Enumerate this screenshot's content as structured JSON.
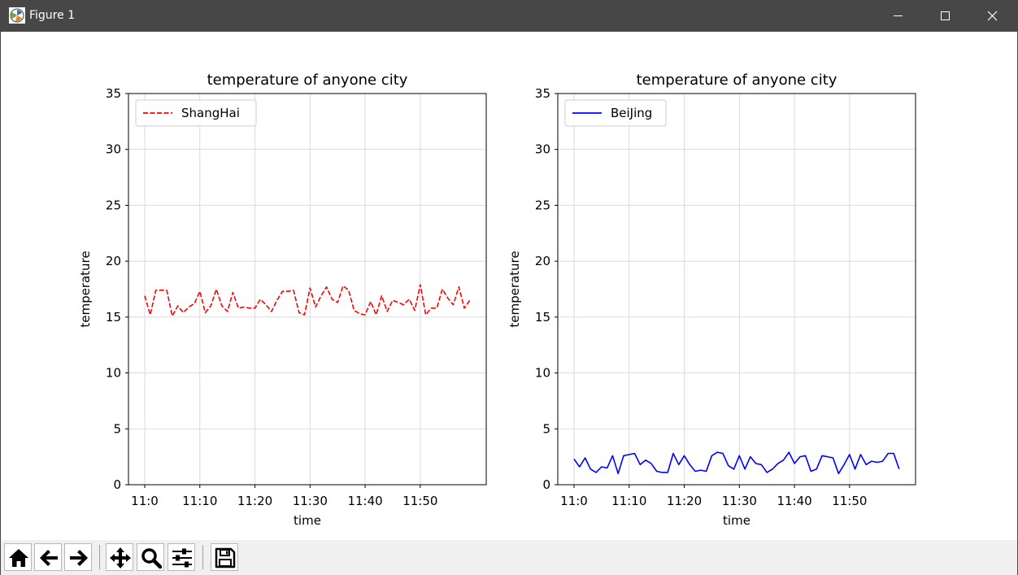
{
  "window": {
    "title": "Figure 1",
    "controls": [
      "minimize-icon",
      "maximize-icon",
      "close-icon"
    ]
  },
  "toolbar": {
    "buttons": [
      "home-icon",
      "back-icon",
      "forward-icon",
      "pan-icon",
      "zoom-icon",
      "configure-subplots-icon",
      "save-icon"
    ]
  },
  "chart_data": [
    {
      "type": "line",
      "title": "temperature of anyone city",
      "xlabel": "time",
      "ylabel": "temperature",
      "x": [
        0,
        1,
        2,
        3,
        4,
        5,
        6,
        7,
        8,
        9,
        10,
        11,
        12,
        13,
        14,
        15,
        16,
        17,
        18,
        19,
        20,
        21,
        22,
        23,
        24,
        25,
        26,
        27,
        28,
        29,
        30,
        31,
        32,
        33,
        34,
        35,
        36,
        37,
        38,
        39,
        40,
        41,
        42,
        43,
        44,
        45,
        46,
        47,
        48,
        49,
        50,
        51,
        52,
        53,
        54,
        55,
        56,
        57,
        58,
        59
      ],
      "xticks": [
        0,
        10,
        20,
        30,
        40,
        50
      ],
      "xticklabels": [
        "11:0",
        "11:10",
        "11:20",
        "11:30",
        "11:40",
        "11:50"
      ],
      "ylim": [
        0,
        35
      ],
      "yticks": [
        0,
        5,
        10,
        15,
        20,
        25,
        30,
        35
      ],
      "grid": true,
      "legend_position": "upper left",
      "series": [
        {
          "name": "ShangHai",
          "color": "#ff0000",
          "linestyle": "dashed",
          "values": [
            16.9,
            15.2,
            17.4,
            17.4,
            17.4,
            15.1,
            16.0,
            15.4,
            15.9,
            16.2,
            17.3,
            15.4,
            16.0,
            17.5,
            16.0,
            15.5,
            17.2,
            15.8,
            15.9,
            15.8,
            15.8,
            16.6,
            16.1,
            15.5,
            16.5,
            17.3,
            17.3,
            17.4,
            15.4,
            15.2,
            17.6,
            15.9,
            16.9,
            17.7,
            16.6,
            16.3,
            17.8,
            17.4,
            15.6,
            15.3,
            15.2,
            16.4,
            15.2,
            16.9,
            15.5,
            16.5,
            16.3,
            16.1,
            16.6,
            15.6,
            17.9,
            15.2,
            15.8,
            15.8,
            17.5,
            16.7,
            16.1,
            17.7,
            15.8,
            16.5
          ]
        }
      ]
    },
    {
      "type": "line",
      "title": "temperature of anyone city",
      "xlabel": "time",
      "ylabel": "temperature",
      "x": [
        0,
        1,
        2,
        3,
        4,
        5,
        6,
        7,
        8,
        9,
        10,
        11,
        12,
        13,
        14,
        15,
        16,
        17,
        18,
        19,
        20,
        21,
        22,
        23,
        24,
        25,
        26,
        27,
        28,
        29,
        30,
        31,
        32,
        33,
        34,
        35,
        36,
        37,
        38,
        39,
        40,
        41,
        42,
        43,
        44,
        45,
        46,
        47,
        48,
        49,
        50,
        51,
        52,
        53,
        54,
        55,
        56,
        57,
        58,
        59
      ],
      "xticks": [
        0,
        10,
        20,
        30,
        40,
        50
      ],
      "xticklabels": [
        "11:0",
        "11:10",
        "11:20",
        "11:30",
        "11:40",
        "11:50"
      ],
      "ylim": [
        0,
        35
      ],
      "yticks": [
        0,
        5,
        10,
        15,
        20,
        25,
        30,
        35
      ],
      "grid": true,
      "legend_position": "upper left",
      "series": [
        {
          "name": "BeiJing",
          "color": "#0000ff",
          "linestyle": "solid",
          "values": [
            2.3,
            1.6,
            2.4,
            1.4,
            1.1,
            1.6,
            1.5,
            2.6,
            1.0,
            2.6,
            2.7,
            2.8,
            1.8,
            2.2,
            1.9,
            1.2,
            1.1,
            1.1,
            2.8,
            1.8,
            2.6,
            1.8,
            1.2,
            1.3,
            1.2,
            2.6,
            2.9,
            2.8,
            1.7,
            1.4,
            2.6,
            1.4,
            2.5,
            1.9,
            1.8,
            1.1,
            1.4,
            1.9,
            2.2,
            2.9,
            1.9,
            2.5,
            2.6,
            1.2,
            1.4,
            2.6,
            2.5,
            2.4,
            1.0,
            1.8,
            2.7,
            1.4,
            2.7,
            1.8,
            2.1,
            2.0,
            2.1,
            2.8,
            2.8,
            1.4
          ]
        }
      ]
    }
  ]
}
